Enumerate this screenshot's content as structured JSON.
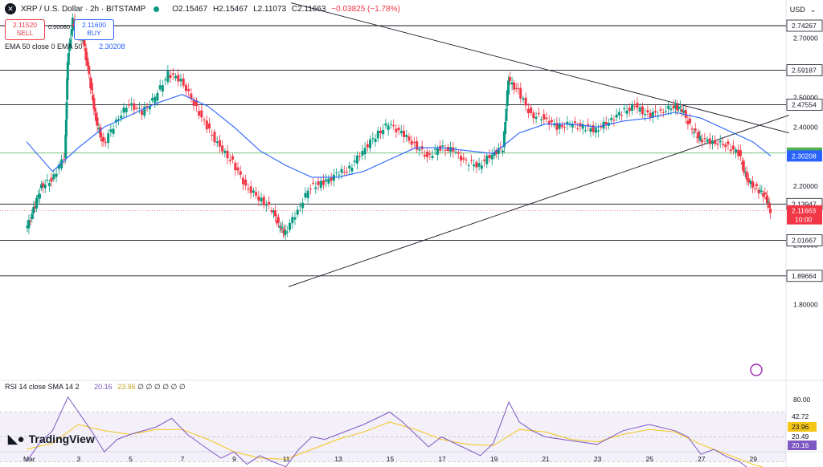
{
  "header": {
    "symbol_icon": "x-icon",
    "title": "XRP / U.S. Dollar · 2h · BITSTAMP",
    "market_status_color": "#089981",
    "ohlc": {
      "o": "O2.15467",
      "h": "H2.15467",
      "l": "L2.11073",
      "c": "C2.11663",
      "change": "−0.03825 (−1.78%)"
    }
  },
  "trade": {
    "sell_price": "2.11520",
    "sell_label": "SELL",
    "spread": "0.00080",
    "buy_price": "2.11600",
    "buy_label": "BUY"
  },
  "ema_legend": {
    "label": "EMA 50 close 0 EMA 50",
    "value": "2.30208"
  },
  "rsi_legend": {
    "label": "RSI 14 close SMA 14 2",
    "rsi_value": "20.16",
    "sma_value": "23.96",
    "tail": "∅ ∅ ∅ ∅ ∅ ∅"
  },
  "currency": "USD",
  "brand": "TradingView",
  "colors": {
    "up": "#089981",
    "down": "#f23645",
    "ema": "#2962ff",
    "rsi": "#7e57c2",
    "rsi_sma": "#f5c518"
  },
  "chart_data": {
    "type": "candlestick",
    "price_axis_ticks": [
      "2.70000",
      "2.50000",
      "2.40000",
      "2.20000",
      "2.00000",
      "1.80000"
    ],
    "ylim": [
      1.74,
      2.8
    ],
    "x_tick_labels": [
      "Mar",
      "3",
      "5",
      "7",
      "9",
      "11",
      "13",
      "15",
      "17",
      "19",
      "21",
      "23",
      "25",
      "27",
      "29"
    ],
    "horizontal_levels": [
      {
        "label": "2.74267",
        "value": 2.74267
      },
      {
        "label": "2.59187",
        "value": 2.59187
      },
      {
        "label": "2.47554",
        "value": 2.47554
      },
      {
        "label": "2.13947",
        "value": 2.13947
      },
      {
        "label": "2.01667",
        "value": 2.01667
      },
      {
        "label": "1.89664",
        "value": 1.89664
      }
    ],
    "green_level": {
      "label": "2.31181",
      "value": 2.31181
    },
    "ema_tag": {
      "label": "2.30208",
      "value": 2.30208
    },
    "last_price_tag": {
      "label": "2.11663",
      "countdown": "10:00",
      "value": 2.11663
    },
    "trendlines": [
      {
        "name": "descending",
        "from": {
          "day": 11.2,
          "price": 2.82
        },
        "to": {
          "day": 30.4,
          "price": 2.38
        }
      },
      {
        "name": "ascending",
        "from": {
          "day": 11.1,
          "price": 1.86
        },
        "to": {
          "day": 30.4,
          "price": 2.44
        }
      }
    ],
    "price_series": [
      {
        "day": 1.0,
        "price": 2.05
      },
      {
        "day": 1.3,
        "price": 2.12
      },
      {
        "day": 1.6,
        "price": 2.2
      },
      {
        "day": 2.0,
        "price": 2.22
      },
      {
        "day": 2.5,
        "price": 2.3
      },
      {
        "day": 2.6,
        "price": 2.62
      },
      {
        "day": 2.8,
        "price": 2.76
      },
      {
        "day": 3.0,
        "price": 2.72
      },
      {
        "day": 3.2,
        "price": 2.7
      },
      {
        "day": 3.5,
        "price": 2.54
      },
      {
        "day": 3.7,
        "price": 2.42
      },
      {
        "day": 4.0,
        "price": 2.34
      },
      {
        "day": 4.5,
        "price": 2.42
      },
      {
        "day": 5.0,
        "price": 2.48
      },
      {
        "day": 5.5,
        "price": 2.45
      },
      {
        "day": 6.0,
        "price": 2.5
      },
      {
        "day": 6.5,
        "price": 2.58
      },
      {
        "day": 7.0,
        "price": 2.56
      },
      {
        "day": 7.5,
        "price": 2.48
      },
      {
        "day": 8.0,
        "price": 2.4
      },
      {
        "day": 8.5,
        "price": 2.33
      },
      {
        "day": 9.0,
        "price": 2.28
      },
      {
        "day": 9.5,
        "price": 2.2
      },
      {
        "day": 10.0,
        "price": 2.16
      },
      {
        "day": 10.5,
        "price": 2.12
      },
      {
        "day": 10.8,
        "price": 2.06
      },
      {
        "day": 11.0,
        "price": 2.04
      },
      {
        "day": 11.5,
        "price": 2.12
      },
      {
        "day": 12.0,
        "price": 2.2
      },
      {
        "day": 12.5,
        "price": 2.21
      },
      {
        "day": 13.0,
        "price": 2.24
      },
      {
        "day": 13.5,
        "price": 2.26
      },
      {
        "day": 14.0,
        "price": 2.32
      },
      {
        "day": 14.5,
        "price": 2.37
      },
      {
        "day": 15.0,
        "price": 2.41
      },
      {
        "day": 15.5,
        "price": 2.38
      },
      {
        "day": 16.0,
        "price": 2.34
      },
      {
        "day": 16.5,
        "price": 2.3
      },
      {
        "day": 17.0,
        "price": 2.33
      },
      {
        "day": 17.5,
        "price": 2.32
      },
      {
        "day": 18.0,
        "price": 2.28
      },
      {
        "day": 18.5,
        "price": 2.27
      },
      {
        "day": 19.0,
        "price": 2.31
      },
      {
        "day": 19.4,
        "price": 2.33
      },
      {
        "day": 19.6,
        "price": 2.56
      },
      {
        "day": 20.0,
        "price": 2.52
      },
      {
        "day": 20.5,
        "price": 2.44
      },
      {
        "day": 21.0,
        "price": 2.43
      },
      {
        "day": 21.5,
        "price": 2.4
      },
      {
        "day": 22.0,
        "price": 2.41
      },
      {
        "day": 22.5,
        "price": 2.4
      },
      {
        "day": 23.0,
        "price": 2.39
      },
      {
        "day": 23.5,
        "price": 2.42
      },
      {
        "day": 24.0,
        "price": 2.45
      },
      {
        "day": 24.5,
        "price": 2.47
      },
      {
        "day": 25.0,
        "price": 2.44
      },
      {
        "day": 25.5,
        "price": 2.45
      },
      {
        "day": 26.0,
        "price": 2.47
      },
      {
        "day": 26.3,
        "price": 2.46
      },
      {
        "day": 26.7,
        "price": 2.39
      },
      {
        "day": 27.0,
        "price": 2.36
      },
      {
        "day": 27.5,
        "price": 2.35
      },
      {
        "day": 28.0,
        "price": 2.34
      },
      {
        "day": 28.5,
        "price": 2.31
      },
      {
        "day": 28.8,
        "price": 2.22
      },
      {
        "day": 29.2,
        "price": 2.19
      },
      {
        "day": 29.5,
        "price": 2.17
      },
      {
        "day": 29.7,
        "price": 2.117
      }
    ],
    "ema50_series": [
      {
        "day": 1.0,
        "price": 2.35
      },
      {
        "day": 2.0,
        "price": 2.25
      },
      {
        "day": 3.0,
        "price": 2.33
      },
      {
        "day": 4.0,
        "price": 2.4
      },
      {
        "day": 5.0,
        "price": 2.44
      },
      {
        "day": 6.0,
        "price": 2.48
      },
      {
        "day": 7.0,
        "price": 2.51
      },
      {
        "day": 8.0,
        "price": 2.47
      },
      {
        "day": 9.0,
        "price": 2.4
      },
      {
        "day": 10.0,
        "price": 2.32
      },
      {
        "day": 11.0,
        "price": 2.27
      },
      {
        "day": 12.0,
        "price": 2.23
      },
      {
        "day": 13.0,
        "price": 2.23
      },
      {
        "day": 14.0,
        "price": 2.25
      },
      {
        "day": 15.0,
        "price": 2.29
      },
      {
        "day": 16.0,
        "price": 2.33
      },
      {
        "day": 17.0,
        "price": 2.33
      },
      {
        "day": 18.0,
        "price": 2.32
      },
      {
        "day": 19.0,
        "price": 2.31
      },
      {
        "day": 20.0,
        "price": 2.38
      },
      {
        "day": 21.0,
        "price": 2.41
      },
      {
        "day": 22.0,
        "price": 2.41
      },
      {
        "day": 23.0,
        "price": 2.4
      },
      {
        "day": 24.0,
        "price": 2.42
      },
      {
        "day": 25.0,
        "price": 2.43
      },
      {
        "day": 26.0,
        "price": 2.45
      },
      {
        "day": 27.0,
        "price": 2.43
      },
      {
        "day": 28.0,
        "price": 2.39
      },
      {
        "day": 29.0,
        "price": 2.35
      },
      {
        "day": 29.7,
        "price": 2.302
      }
    ],
    "rsi": {
      "axis_ticks": [
        "80.00",
        "60.00",
        "20.00"
      ],
      "upper_band": 70,
      "lower_band": 30,
      "range": [
        10,
        90
      ],
      "sma_tag": "23.96",
      "level_tag_1": "42.72",
      "level_tag_2": "20.49",
      "rsi_tag": "20.16",
      "rsi_series": [
        {
          "day": 1.0,
          "rsi": 30
        },
        {
          "day": 1.5,
          "rsi": 45
        },
        {
          "day": 2.0,
          "rsi": 55
        },
        {
          "day": 2.6,
          "rsi": 82
        },
        {
          "day": 3.0,
          "rsi": 70
        },
        {
          "day": 3.5,
          "rsi": 55
        },
        {
          "day": 4.0,
          "rsi": 38
        },
        {
          "day": 4.5,
          "rsi": 48
        },
        {
          "day": 5.0,
          "rsi": 52
        },
        {
          "day": 6.0,
          "rsi": 58
        },
        {
          "day": 6.6,
          "rsi": 65
        },
        {
          "day": 7.2,
          "rsi": 52
        },
        {
          "day": 8.0,
          "rsi": 40
        },
        {
          "day": 8.5,
          "rsi": 33
        },
        {
          "day": 9.0,
          "rsi": 38
        },
        {
          "day": 9.5,
          "rsi": 28
        },
        {
          "day": 10.0,
          "rsi": 35
        },
        {
          "day": 10.5,
          "rsi": 30
        },
        {
          "day": 11.0,
          "rsi": 26
        },
        {
          "day": 11.5,
          "rsi": 40
        },
        {
          "day": 12.0,
          "rsi": 50
        },
        {
          "day": 12.5,
          "rsi": 48
        },
        {
          "day": 13.0,
          "rsi": 52
        },
        {
          "day": 14.0,
          "rsi": 60
        },
        {
          "day": 15.0,
          "rsi": 70
        },
        {
          "day": 15.5,
          "rsi": 62
        },
        {
          "day": 16.0,
          "rsi": 52
        },
        {
          "day": 16.5,
          "rsi": 42
        },
        {
          "day": 17.0,
          "rsi": 50
        },
        {
          "day": 18.0,
          "rsi": 40
        },
        {
          "day": 18.5,
          "rsi": 35
        },
        {
          "day": 19.0,
          "rsi": 45
        },
        {
          "day": 19.6,
          "rsi": 78
        },
        {
          "day": 20.0,
          "rsi": 62
        },
        {
          "day": 20.5,
          "rsi": 55
        },
        {
          "day": 21.0,
          "rsi": 50
        },
        {
          "day": 22.0,
          "rsi": 47
        },
        {
          "day": 23.0,
          "rsi": 44
        },
        {
          "day": 24.0,
          "rsi": 55
        },
        {
          "day": 25.0,
          "rsi": 60
        },
        {
          "day": 26.0,
          "rsi": 55
        },
        {
          "day": 26.5,
          "rsi": 50
        },
        {
          "day": 27.0,
          "rsi": 36
        },
        {
          "day": 27.5,
          "rsi": 40
        },
        {
          "day": 28.0,
          "rsi": 34
        },
        {
          "day": 28.5,
          "rsi": 30
        },
        {
          "day": 29.0,
          "rsi": 22
        },
        {
          "day": 29.5,
          "rsi": 25
        },
        {
          "day": 29.7,
          "rsi": 20.16
        }
      ],
      "sma_series": [
        {
          "day": 1.0,
          "rsi": 40
        },
        {
          "day": 2.0,
          "rsi": 45
        },
        {
          "day": 3.0,
          "rsi": 60
        },
        {
          "day": 4.0,
          "rsi": 55
        },
        {
          "day": 5.0,
          "rsi": 52
        },
        {
          "day": 6.0,
          "rsi": 56
        },
        {
          "day": 7.0,
          "rsi": 56
        },
        {
          "day": 8.0,
          "rsi": 48
        },
        {
          "day": 9.0,
          "rsi": 38
        },
        {
          "day": 10.0,
          "rsi": 33
        },
        {
          "day": 11.0,
          "rsi": 32
        },
        {
          "day": 12.0,
          "rsi": 40
        },
        {
          "day": 13.0,
          "rsi": 48
        },
        {
          "day": 14.0,
          "rsi": 54
        },
        {
          "day": 15.0,
          "rsi": 62
        },
        {
          "day": 16.0,
          "rsi": 56
        },
        {
          "day": 17.0,
          "rsi": 48
        },
        {
          "day": 18.0,
          "rsi": 44
        },
        {
          "day": 19.0,
          "rsi": 43
        },
        {
          "day": 20.0,
          "rsi": 56
        },
        {
          "day": 21.0,
          "rsi": 54
        },
        {
          "day": 22.0,
          "rsi": 48
        },
        {
          "day": 23.0,
          "rsi": 46
        },
        {
          "day": 24.0,
          "rsi": 52
        },
        {
          "day": 25.0,
          "rsi": 56
        },
        {
          "day": 26.0,
          "rsi": 54
        },
        {
          "day": 27.0,
          "rsi": 44
        },
        {
          "day": 28.0,
          "rsi": 36
        },
        {
          "day": 29.0,
          "rsi": 28
        },
        {
          "day": 29.7,
          "rsi": 23.96
        }
      ]
    }
  }
}
